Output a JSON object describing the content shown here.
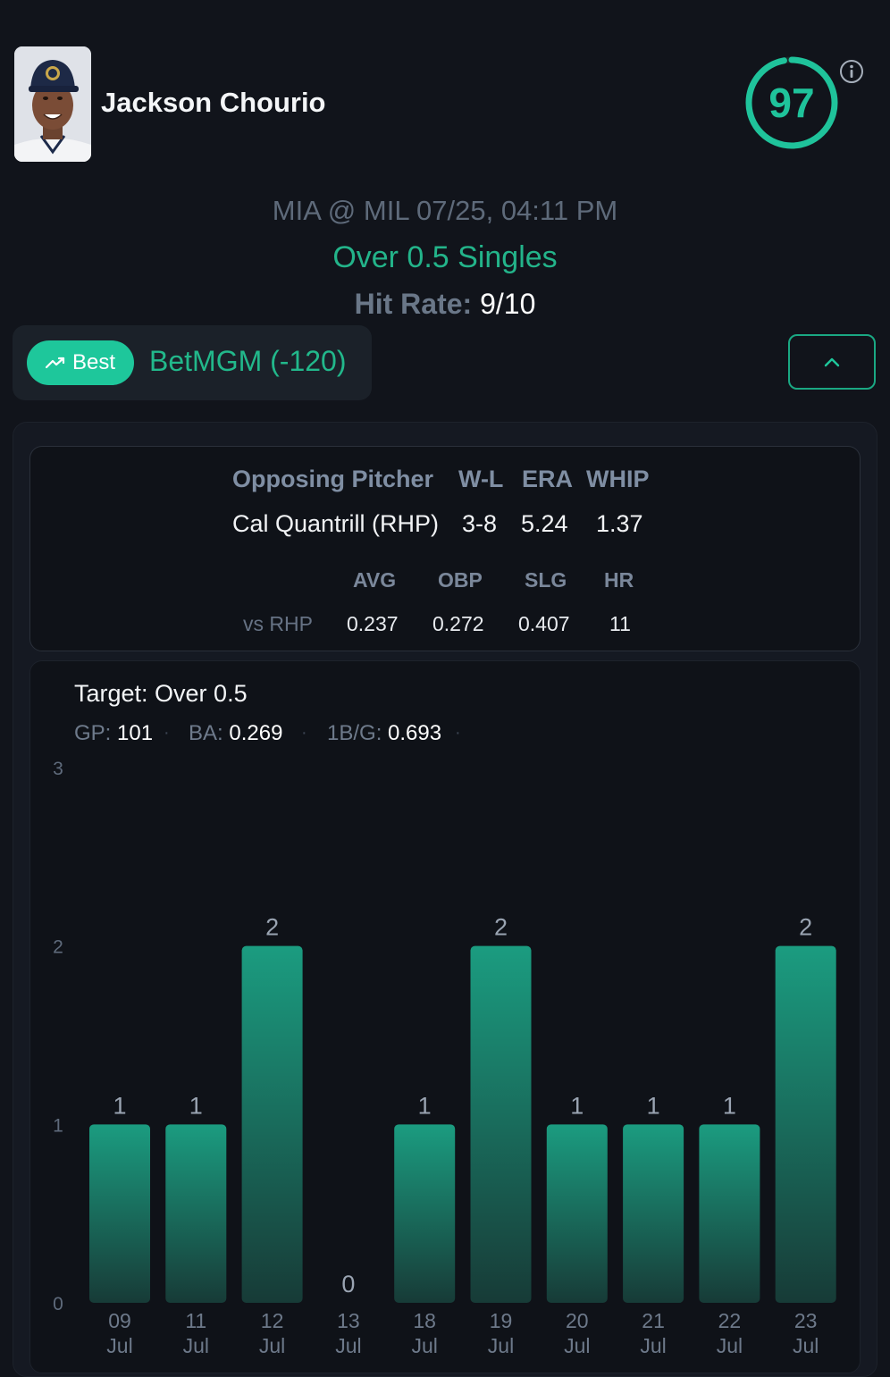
{
  "player": {
    "name": "Jackson Chourio"
  },
  "score": {
    "value": "97"
  },
  "icons": {
    "info": "info-icon",
    "trend": "trend-up-icon",
    "collapse": "chevron-up-icon"
  },
  "matchup": {
    "text": "MIA @ MIL 07/25, 04:11 PM"
  },
  "prop": {
    "text": "Over 0.5 Singles"
  },
  "hit_rate": {
    "label": "Hit Rate:",
    "value": "9/10"
  },
  "best_bet": {
    "badge": "Best",
    "book": "BetMGM (-120)"
  },
  "pitcher": {
    "headers": {
      "name": "Opposing Pitcher",
      "wl": "W-L",
      "era": "ERA",
      "whip": "WHIP"
    },
    "values": {
      "name": "Cal Quantrill (RHP)",
      "wl": "3-8",
      "era": "5.24",
      "whip": "1.37"
    },
    "split_headers": {
      "avg": "AVG",
      "obp": "OBP",
      "slg": "SLG",
      "hr": "HR"
    },
    "split_label": "vs RHP",
    "split_values": {
      "avg": "0.237",
      "obp": "0.272",
      "slg": "0.407",
      "hr": "11"
    }
  },
  "target": {
    "text": "Target: Over 0.5"
  },
  "stats": {
    "gp_label": "GP:",
    "gp_value": "101",
    "ba_label": "BA:",
    "ba_value": "0.269",
    "bpg_label": "1B/G:",
    "bpg_value": "0.693"
  },
  "colors": {
    "accent": "#1ec79b",
    "bar_top": "#1b9c80",
    "bar_bottom": "#173b37"
  },
  "chart_data": {
    "type": "bar",
    "categories": [
      [
        "09",
        "Jul"
      ],
      [
        "11",
        "Jul"
      ],
      [
        "12",
        "Jul"
      ],
      [
        "13",
        "Jul"
      ],
      [
        "18",
        "Jul"
      ],
      [
        "19",
        "Jul"
      ],
      [
        "20",
        "Jul"
      ],
      [
        "21",
        "Jul"
      ],
      [
        "22",
        "Jul"
      ],
      [
        "23",
        "Jul"
      ]
    ],
    "values": [
      1,
      1,
      2,
      0,
      1,
      2,
      1,
      1,
      1,
      2
    ],
    "ylim": [
      0,
      3
    ],
    "yticks": [
      0,
      1,
      2,
      3
    ],
    "data_labels": true,
    "grid": false
  }
}
